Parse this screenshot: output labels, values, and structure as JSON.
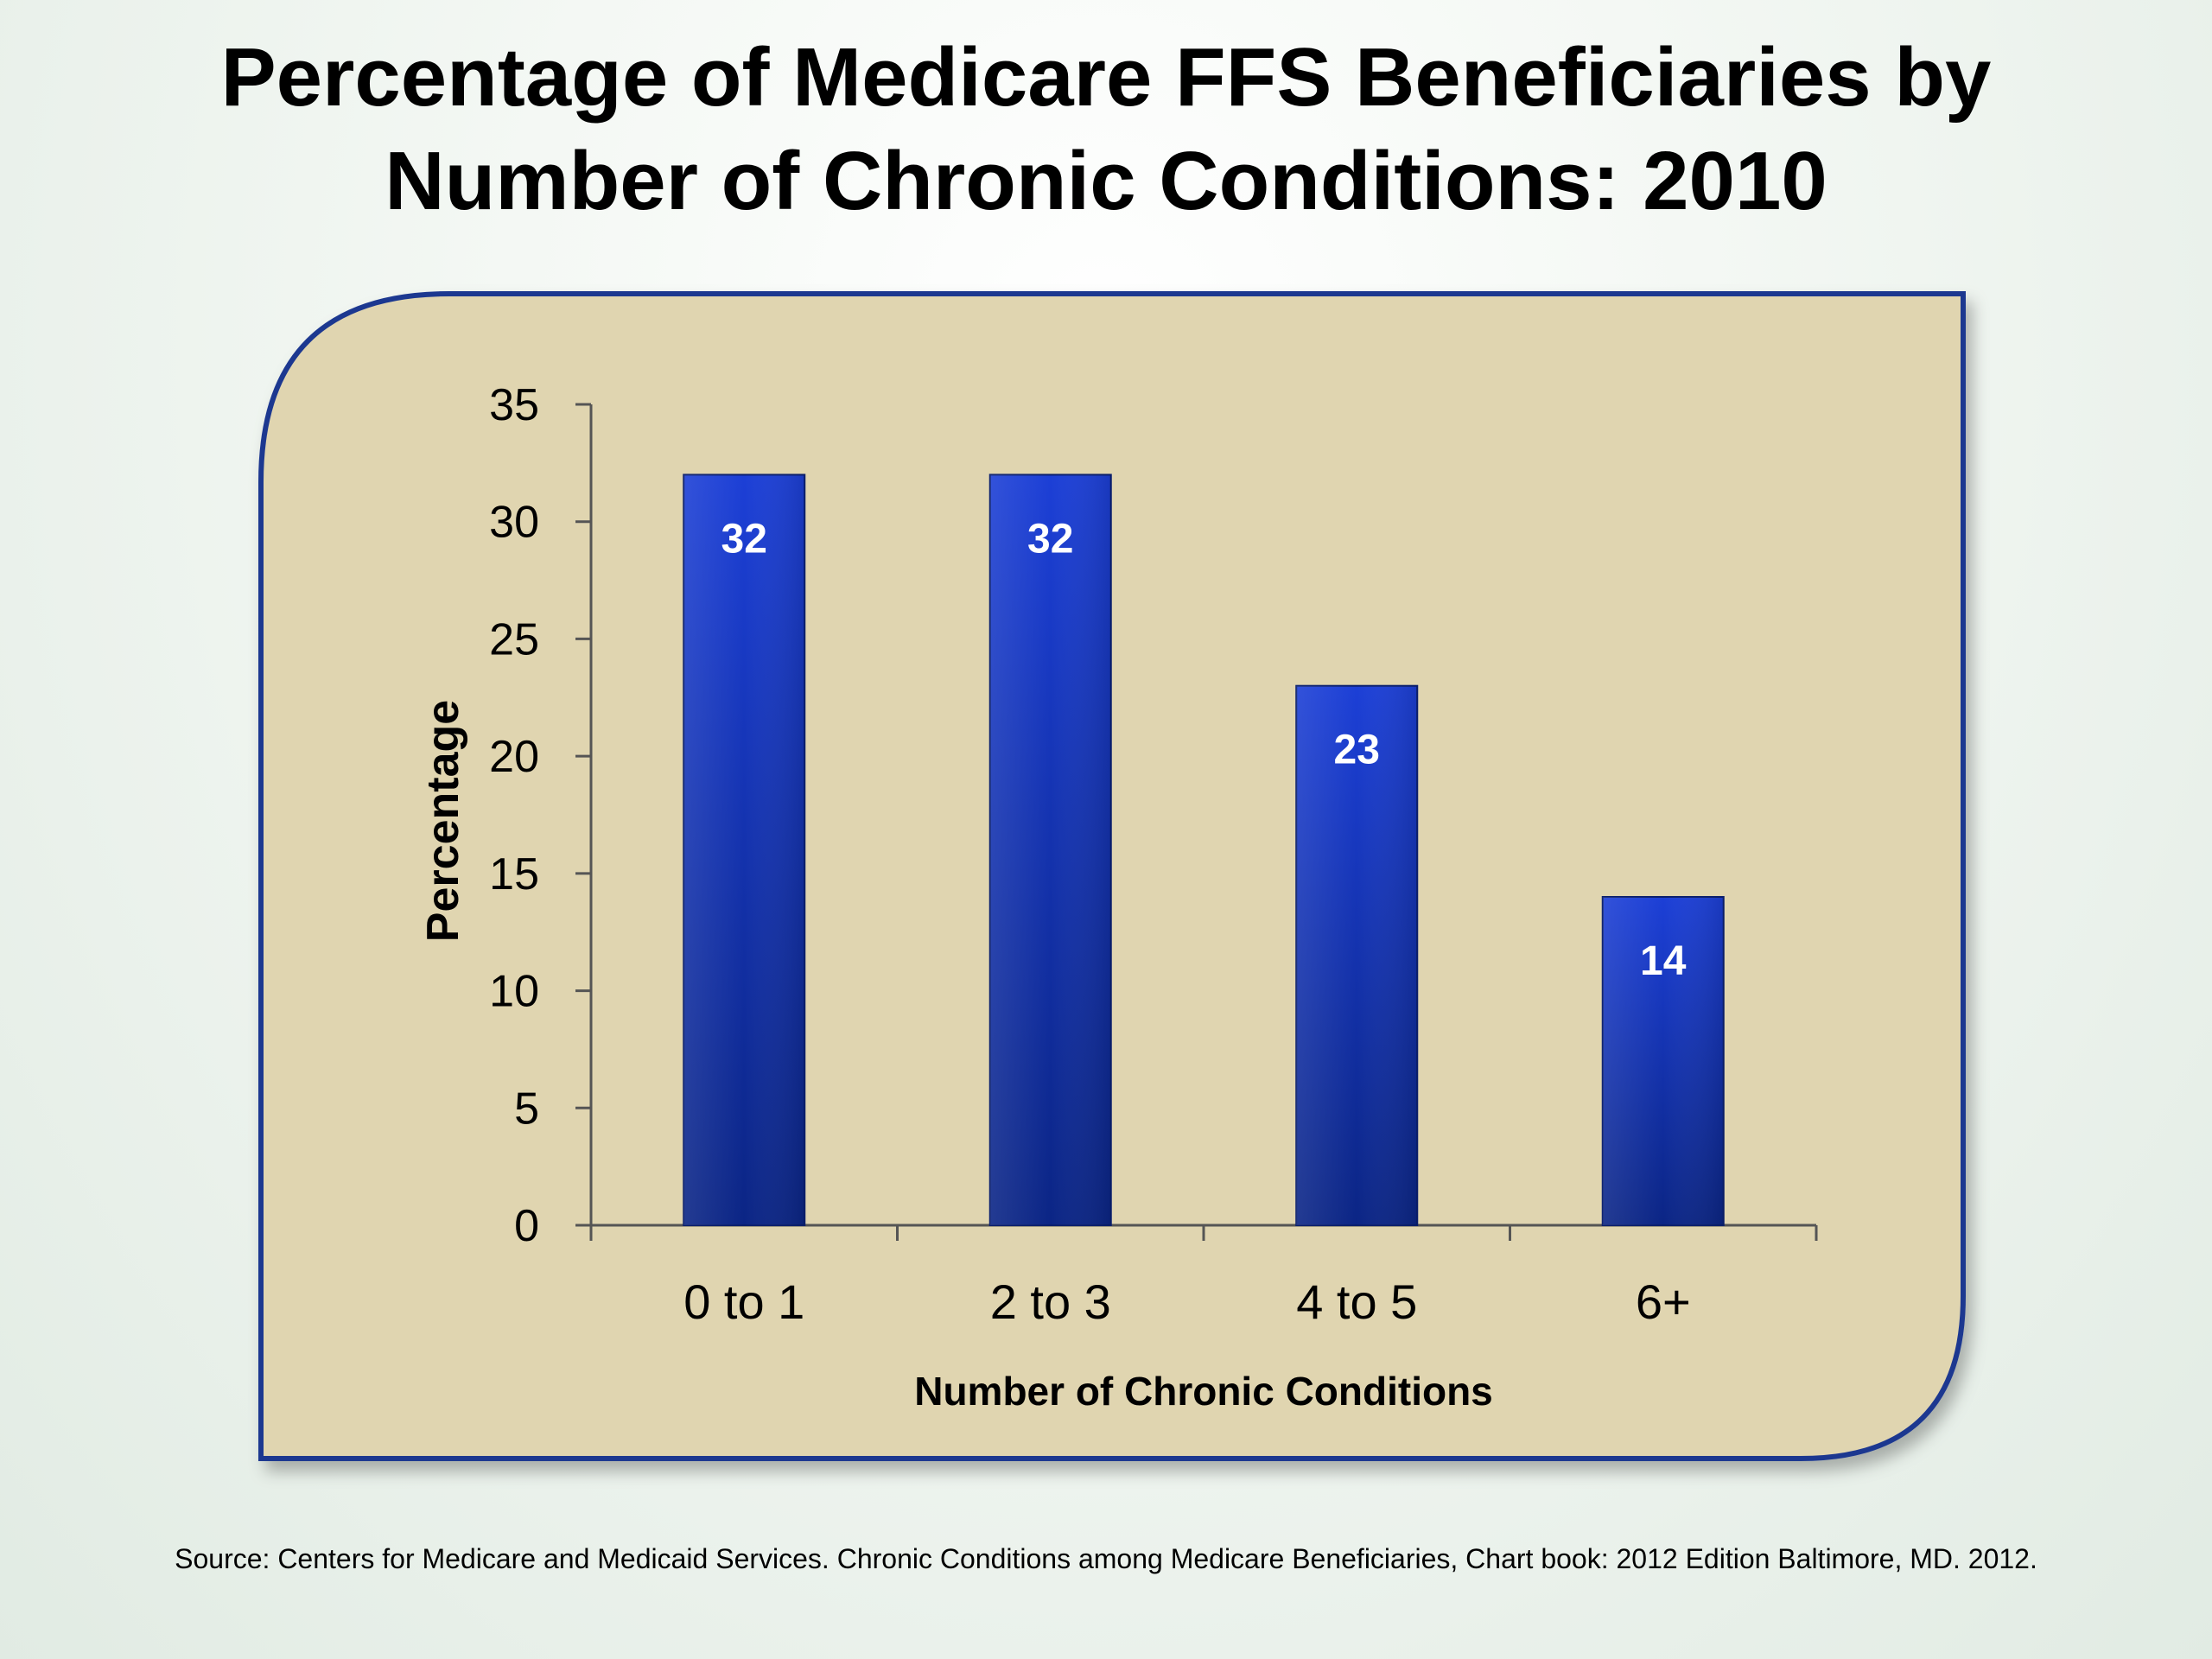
{
  "slide": {
    "title_line1": "Percentage of Medicare FFS Beneficiaries by",
    "title_line2": "Number of Chronic Conditions: 2010",
    "source": "Source: Centers for Medicare and Medicaid Services. Chronic Conditions among Medicare Beneficiaries, Chart book: 2012 Edition Baltimore, MD. 2012."
  },
  "colors": {
    "panel_fill": "#e0d5b0",
    "panel_border": "#1f3990",
    "bar_top": "#1c3fd6",
    "bar_bottom": "#0b2585",
    "axis": "#555555",
    "data_label": "#ffffff"
  },
  "chart_data": {
    "type": "bar",
    "categories": [
      "0 to 1",
      "2 to 3",
      "4 to 5",
      "6+"
    ],
    "values": [
      32,
      32,
      23,
      14
    ],
    "data_labels": [
      "32",
      "32",
      "23",
      "14"
    ],
    "title": "",
    "xlabel": "Number of  Chronic Conditions",
    "ylabel": "Percentage",
    "ylim": [
      0,
      35
    ],
    "yticks": [
      0,
      5,
      10,
      15,
      20,
      25,
      30,
      35
    ],
    "grid": false,
    "legend": "none"
  }
}
